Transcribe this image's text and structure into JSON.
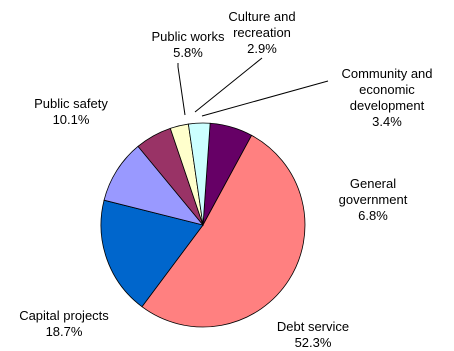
{
  "chart_data": {
    "type": "pie",
    "title": "",
    "slices": [
      {
        "label": "General government",
        "value": 6.8,
        "percent_label": "6.8%",
        "color": "#660066"
      },
      {
        "label": "Debt service",
        "value": 52.3,
        "percent_label": "52.3%",
        "color": "#FF8080"
      },
      {
        "label": "Capital projects",
        "value": 18.7,
        "percent_label": "18.7%",
        "color": "#0066CC"
      },
      {
        "label": "Public safety",
        "value": 10.1,
        "percent_label": "10.1%",
        "color": "#9999FF"
      },
      {
        "label": "Public works",
        "value": 5.8,
        "percent_label": "5.8%",
        "color": "#993366"
      },
      {
        "label": "Culture and recreation",
        "value": 2.9,
        "percent_label": "2.9%",
        "color": "#FFFFCC"
      },
      {
        "label": "Community and economic development",
        "value": 3.4,
        "percent_label": "3.4%",
        "color": "#CCFFFF"
      }
    ],
    "legend": "none"
  }
}
